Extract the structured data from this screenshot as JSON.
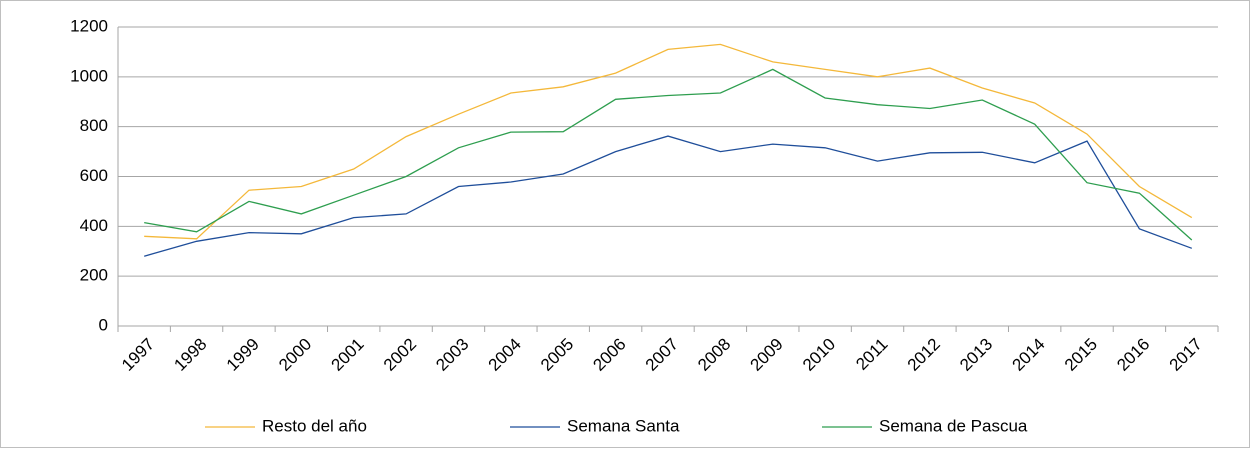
{
  "chart_data": {
    "type": "line",
    "categories": [
      "1997",
      "1998",
      "1999",
      "2000",
      "2001",
      "2002",
      "2003",
      "2004",
      "2005",
      "2006",
      "2007",
      "2008",
      "2009",
      "2010",
      "2011",
      "2012",
      "2013",
      "2014",
      "2015",
      "2016",
      "2017"
    ],
    "series": [
      {
        "name": "Resto del año",
        "color": "#f4b83a",
        "values": [
          360,
          350,
          545,
          560,
          630,
          760,
          850,
          935,
          960,
          1015,
          1110,
          1130,
          1060,
          1030,
          1000,
          1035,
          955,
          895,
          770,
          560,
          435
        ]
      },
      {
        "name": "Semana Santa",
        "color": "#1f4e9a",
        "values": [
          280,
          340,
          375,
          370,
          435,
          450,
          560,
          578,
          610,
          700,
          762,
          700,
          730,
          715,
          662,
          695,
          697,
          655,
          742,
          390,
          312
        ]
      },
      {
        "name": "Semana de Pascua",
        "color": "#2e9e4f",
        "values": [
          415,
          378,
          500,
          450,
          525,
          600,
          715,
          778,
          780,
          910,
          925,
          935,
          1030,
          915,
          888,
          873,
          907,
          810,
          575,
          533,
          345
        ]
      }
    ],
    "ylim": [
      0,
      1200
    ],
    "yticks": [
      0,
      200,
      400,
      600,
      800,
      1000,
      1200
    ],
    "grid": true,
    "legend": "bottom"
  }
}
